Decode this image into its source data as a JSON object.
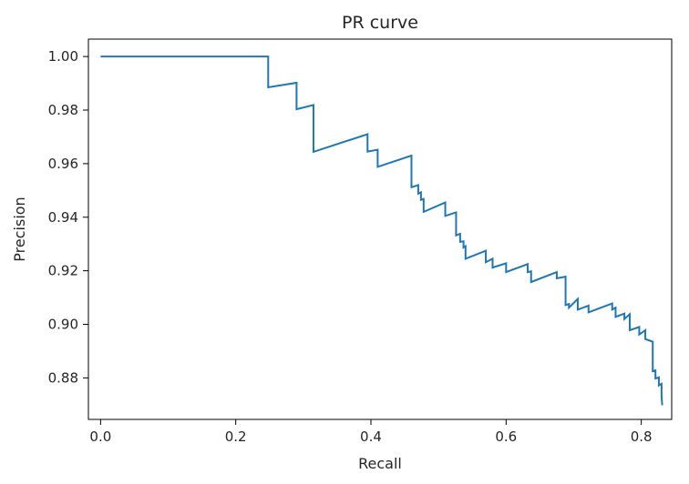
{
  "chart_data": {
    "type": "line",
    "title": "PR curve",
    "xlabel": "Recall",
    "ylabel": "Precision",
    "xlim": [
      -0.018,
      0.845
    ],
    "ylim": [
      0.8645,
      1.0065
    ],
    "x_ticks": [
      0.0,
      0.2,
      0.4,
      0.6,
      0.8
    ],
    "x_tick_labels": [
      "0.0",
      "0.2",
      "0.4",
      "0.6",
      "0.8"
    ],
    "y_ticks": [
      0.88,
      0.9,
      0.92,
      0.94,
      0.96,
      0.98,
      1.0
    ],
    "y_tick_labels": [
      "0.88",
      "0.90",
      "0.92",
      "0.94",
      "0.96",
      "0.98",
      "1.00"
    ],
    "grid": false,
    "legend": "none",
    "series": [
      {
        "color": "#1f77b4",
        "x": [
          0.0,
          0.248,
          0.248,
          0.29,
          0.29,
          0.315,
          0.315,
          0.395,
          0.395,
          0.41,
          0.41,
          0.46,
          0.46,
          0.47,
          0.47,
          0.474,
          0.474,
          0.478,
          0.478,
          0.51,
          0.51,
          0.526,
          0.526,
          0.532,
          0.532,
          0.537,
          0.537,
          0.54,
          0.54,
          0.57,
          0.57,
          0.58,
          0.58,
          0.6,
          0.6,
          0.632,
          0.632,
          0.637,
          0.637,
          0.675,
          0.675,
          0.688,
          0.688,
          0.693,
          0.693,
          0.706,
          0.706,
          0.722,
          0.722,
          0.757,
          0.757,
          0.762,
          0.762,
          0.775,
          0.775,
          0.783,
          0.783,
          0.797,
          0.797,
          0.806,
          0.806,
          0.817,
          0.817,
          0.821,
          0.821,
          0.826,
          0.826,
          0.83,
          0.83,
          0.831
        ],
        "y": [
          1.0,
          1.0,
          0.9885,
          0.9902,
          0.9803,
          0.9819,
          0.9644,
          0.971,
          0.9645,
          0.9652,
          0.9588,
          0.963,
          0.9512,
          0.952,
          0.9488,
          0.9493,
          0.9465,
          0.9468,
          0.942,
          0.9455,
          0.9405,
          0.9418,
          0.9332,
          0.9338,
          0.9308,
          0.931,
          0.9287,
          0.9292,
          0.9245,
          0.9275,
          0.9232,
          0.9245,
          0.9212,
          0.9228,
          0.9195,
          0.9225,
          0.9195,
          0.9198,
          0.9158,
          0.9195,
          0.9172,
          0.9178,
          0.9072,
          0.9076,
          0.9062,
          0.9095,
          0.9055,
          0.907,
          0.9045,
          0.9078,
          0.9055,
          0.9062,
          0.9028,
          0.904,
          0.902,
          0.9038,
          0.8978,
          0.899,
          0.8962,
          0.8978,
          0.8945,
          0.8935,
          0.8825,
          0.8828,
          0.8798,
          0.8802,
          0.8772,
          0.8778,
          0.8732,
          0.8698
        ]
      }
    ]
  }
}
